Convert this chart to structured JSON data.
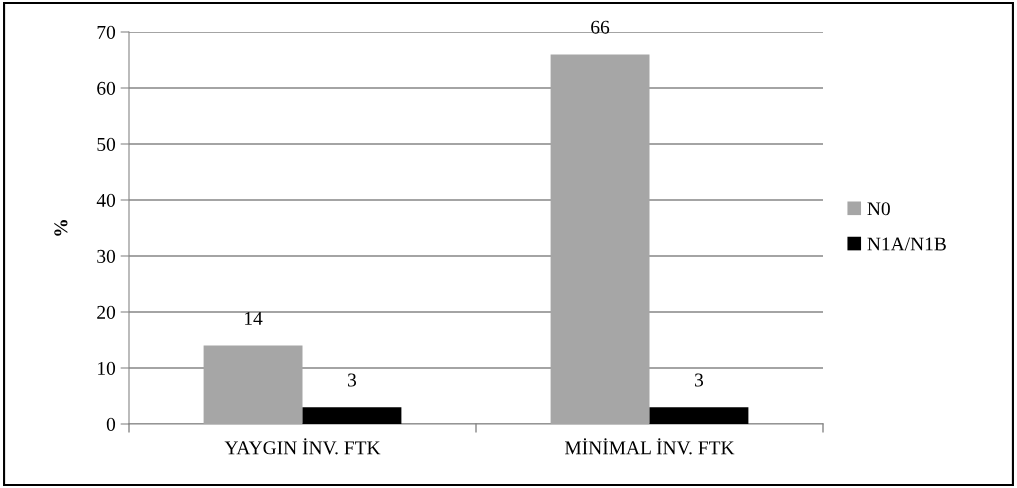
{
  "chart_data": {
    "type": "bar",
    "ylabel": "%",
    "categories": [
      "YAYGIN İNV. FTK",
      "MİNİMAL İNV. FTK"
    ],
    "series": [
      {
        "name": "N0",
        "color": "#a6a6a6",
        "values": [
          14,
          66
        ]
      },
      {
        "name": "N1A/N1B",
        "color": "#000000",
        "values": [
          3,
          3
        ]
      }
    ],
    "ylim": [
      0,
      70
    ],
    "yticks": [
      0,
      10,
      20,
      30,
      40,
      50,
      60,
      70
    ],
    "grid": "y",
    "legend": "right",
    "data_labels": true
  }
}
